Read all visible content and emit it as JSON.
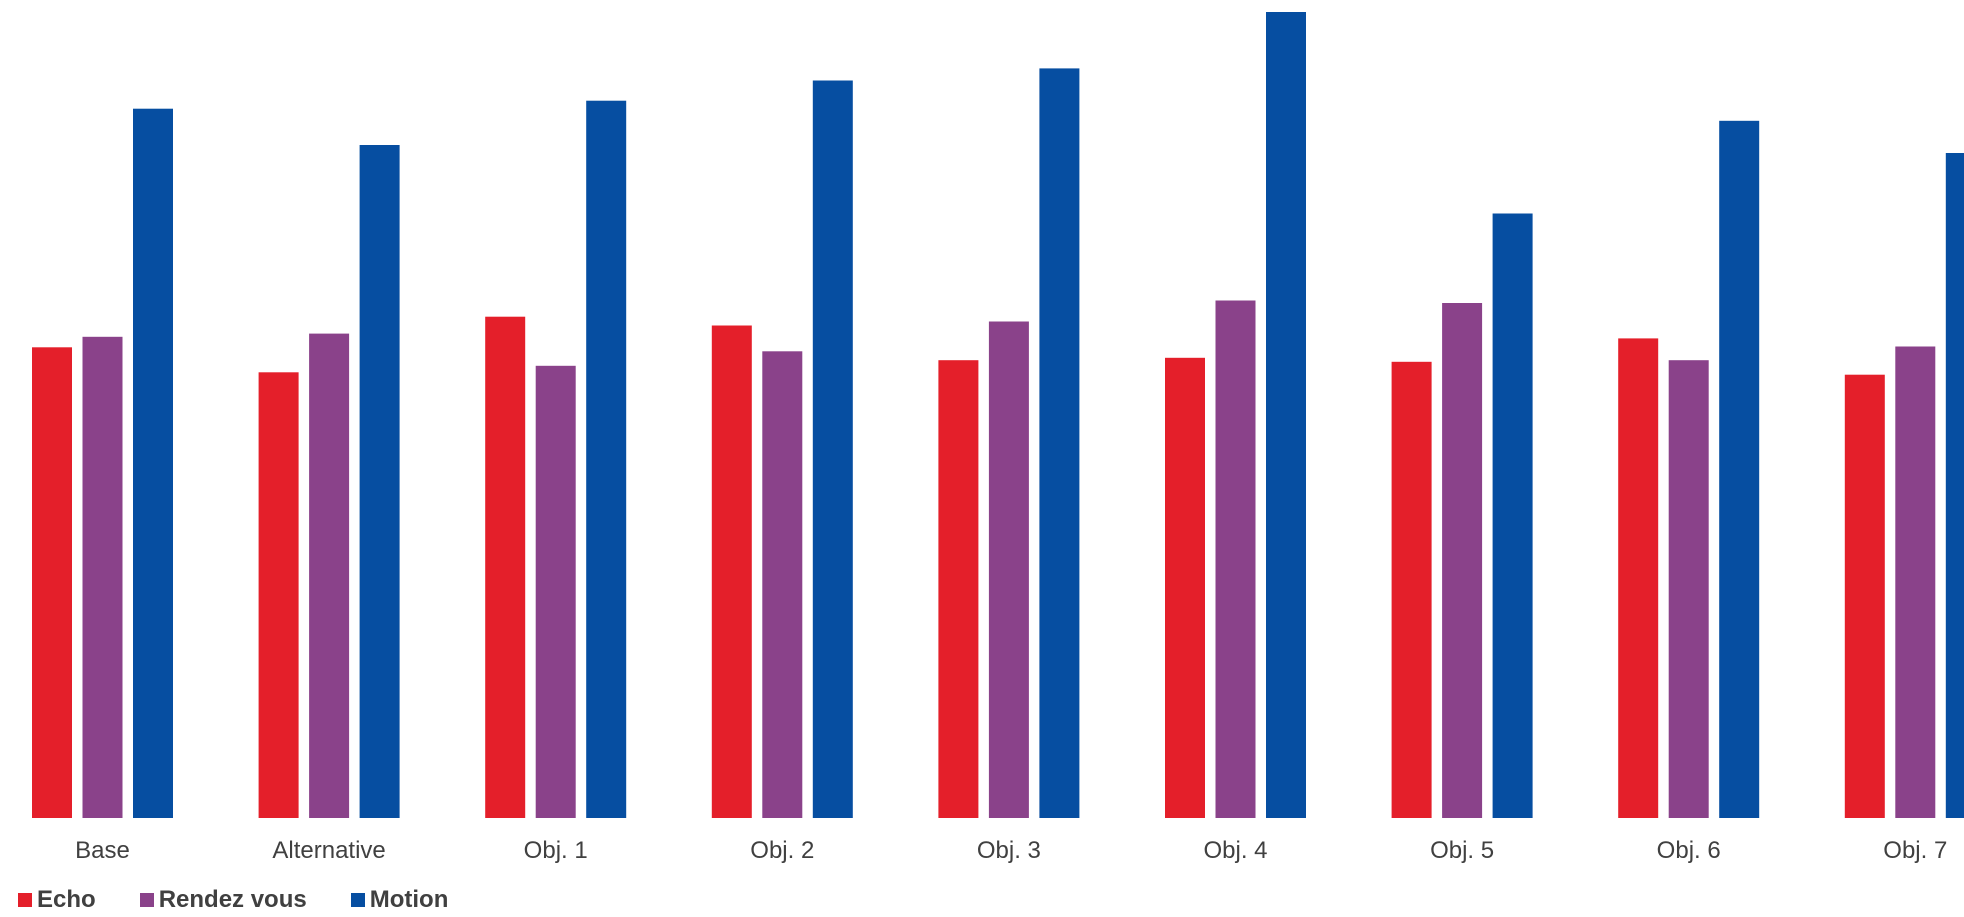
{
  "chart_data": {
    "type": "bar",
    "title": "",
    "xlabel": "",
    "ylabel": "",
    "grid": false,
    "legend_position": "bottom-left",
    "ylim": [
      0,
      100
    ],
    "categories": [
      "Base",
      "Alternative",
      "Obj. 1",
      "Obj. 2",
      "Obj. 3",
      "Obj. 4",
      "Obj. 5",
      "Obj. 6",
      "Obj. 7"
    ],
    "series": [
      {
        "name": "Echo",
        "color": "#e41f2a",
        "values": [
          58.4,
          55.3,
          62.2,
          61.1,
          56.8,
          57.1,
          56.6,
          59.5,
          55.0
        ]
      },
      {
        "name": "Rendez vous",
        "color": "#8a428a",
        "values": [
          59.7,
          60.1,
          56.1,
          57.9,
          61.6,
          64.2,
          63.9,
          56.8,
          58.5
        ]
      },
      {
        "name": "Motion",
        "color": "#064ea1",
        "values": [
          88.0,
          83.5,
          89.0,
          91.5,
          93.0,
          100.0,
          75.0,
          86.5,
          82.5
        ]
      }
    ]
  }
}
